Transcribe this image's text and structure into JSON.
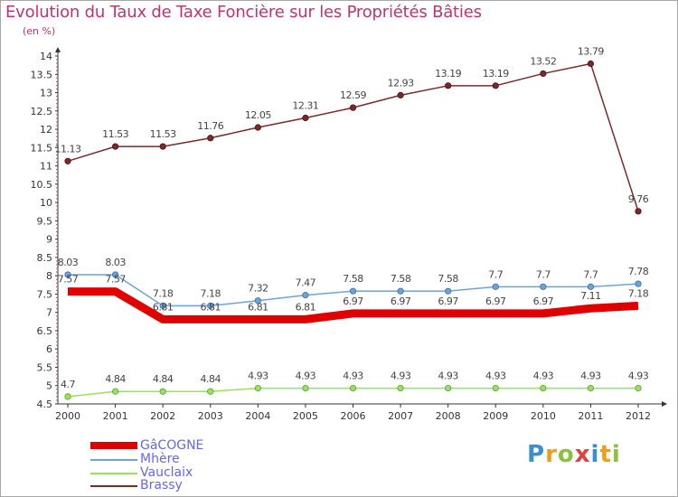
{
  "chart_data": {
    "type": "line",
    "title": "Evolution du Taux de Taxe Foncière sur les Propriétés Bâties",
    "ylabel": "(en %)",
    "xlabel": "",
    "x": [
      "2000",
      "2001",
      "2002",
      "2003",
      "2004",
      "2005",
      "2006",
      "2007",
      "2008",
      "2009",
      "2010",
      "2011",
      "2012"
    ],
    "ylim": [
      4.5,
      14
    ],
    "yticks": [
      "4.5",
      "5",
      "5.5",
      "6",
      "6.5",
      "7",
      "7.5",
      "8",
      "8.5",
      "9",
      "9.5",
      "10",
      "10.5",
      "11",
      "11.5",
      "12",
      "12.5",
      "13",
      "13.5",
      "14"
    ],
    "series": [
      {
        "name": "GâCOGNE",
        "color": "#e10000",
        "values": [
          7.57,
          7.57,
          6.81,
          6.81,
          6.81,
          6.81,
          6.97,
          6.97,
          6.97,
          6.97,
          6.97,
          7.11,
          7.18
        ],
        "labels": [
          "7.57",
          "7.57",
          "6.81",
          "6.81",
          "6.81",
          "6.81",
          "6.97",
          "6.97",
          "6.97",
          "6.97",
          "6.97",
          "7.11",
          "7.18"
        ]
      },
      {
        "name": "Mhère",
        "color": "#6ea3d8",
        "values": [
          8.03,
          8.03,
          7.18,
          7.18,
          7.32,
          7.47,
          7.58,
          7.58,
          7.58,
          7.7,
          7.7,
          7.7,
          7.78
        ],
        "labels": [
          "8.03",
          "8.03",
          "7.18",
          "7.18",
          "7.32",
          "7.47",
          "7.58",
          "7.58",
          "7.58",
          "7.7",
          "7.7",
          "7.7",
          "7.78"
        ]
      },
      {
        "name": "Vauclaix",
        "color": "#9be05a",
        "values": [
          4.7,
          4.84,
          4.84,
          4.84,
          4.93,
          4.93,
          4.93,
          4.93,
          4.93,
          4.93,
          4.93,
          4.93,
          4.93
        ],
        "labels": [
          "4.7",
          "4.84",
          "4.84",
          "4.84",
          "4.93",
          "4.93",
          "4.93",
          "4.93",
          "4.93",
          "4.93",
          "4.93",
          "4.93",
          "4.93"
        ]
      },
      {
        "name": "Brassy",
        "color": "#7a2a2a",
        "values": [
          11.13,
          11.53,
          11.53,
          11.76,
          12.05,
          12.31,
          12.59,
          12.93,
          13.19,
          13.19,
          13.52,
          13.79,
          9.76
        ],
        "labels": [
          "11.13",
          "11.53",
          "11.53",
          "11.76",
          "12.05",
          "12.31",
          "12.59",
          "12.93",
          "13.19",
          "13.19",
          "13.52",
          "13.79",
          "9.76"
        ]
      }
    ],
    "legend_position": "bottom-left",
    "grid": false
  },
  "brand": {
    "logo": [
      "P",
      "r",
      "o",
      "x",
      "i",
      "t",
      "i"
    ],
    "logo_colors": [
      "#3a8fd1",
      "#e8a020",
      "#8cc040",
      "#e04040",
      "#3a8fd1",
      "#e8a020",
      "#8cc040"
    ]
  }
}
